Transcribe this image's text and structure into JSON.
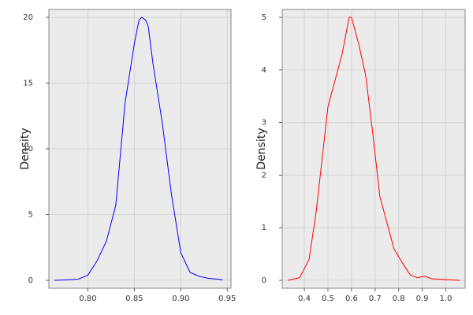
{
  "chart_data": [
    {
      "type": "line",
      "y_label": "Density",
      "x": [
        0.764,
        0.78,
        0.79,
        0.8,
        0.81,
        0.82,
        0.83,
        0.84,
        0.85,
        0.855,
        0.858,
        0.862,
        0.865,
        0.87,
        0.88,
        0.89,
        0.9,
        0.91,
        0.92,
        0.93,
        0.945
      ],
      "series": [
        {
          "color": "#0000ff",
          "values": [
            0,
            0.05,
            0.1,
            0.4,
            1.5,
            3.0,
            5.7,
            13.5,
            18.0,
            19.8,
            20.0,
            19.8,
            19.3,
            16.5,
            12.0,
            6.5,
            2.1,
            0.6,
            0.3,
            0.15,
            0.05
          ]
        }
      ],
      "xlim": [
        0.758,
        0.954
      ],
      "ylim": [
        -0.6,
        20.6
      ],
      "xticks": [
        {
          "value": 0.8,
          "label": "0.80"
        },
        {
          "value": 0.85,
          "label": "0.85"
        },
        {
          "value": 0.9,
          "label": "0.90"
        },
        {
          "value": 0.95,
          "label": "0.95"
        }
      ],
      "yticks": [
        0,
        5,
        10,
        15,
        20
      ],
      "grid": true
    },
    {
      "type": "line",
      "y_label": "Density",
      "x": [
        0.33,
        0.38,
        0.42,
        0.45,
        0.48,
        0.5,
        0.53,
        0.56,
        0.59,
        0.6,
        0.63,
        0.66,
        0.69,
        0.72,
        0.75,
        0.78,
        0.82,
        0.85,
        0.88,
        0.91,
        0.94,
        0.98,
        1.06
      ],
      "series": [
        {
          "color": "#ff0000",
          "values": [
            0,
            0.05,
            0.4,
            1.3,
            2.5,
            3.3,
            3.8,
            4.3,
            5.0,
            5.0,
            4.5,
            3.9,
            2.8,
            1.6,
            1.1,
            0.6,
            0.3,
            0.1,
            0.05,
            0.08,
            0.03,
            0.02,
            0
          ]
        }
      ],
      "xlim": [
        0.306,
        1.082
      ],
      "ylim": [
        -0.15,
        5.15
      ],
      "xticks": [
        0.4,
        0.5,
        0.6,
        0.7,
        0.8,
        0.9,
        {
          "value": 1,
          "label": "1.0"
        }
      ],
      "yticks": [
        0,
        1,
        2,
        3,
        4,
        5
      ],
      "grid": true
    }
  ]
}
